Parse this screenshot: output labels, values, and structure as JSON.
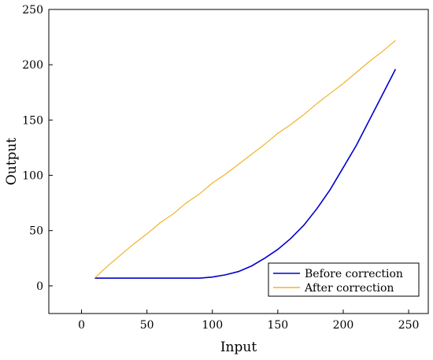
{
  "chart_data": {
    "type": "line",
    "title": "",
    "xlabel": "Input",
    "ylabel": "Output",
    "xlim": [
      -25,
      265
    ],
    "ylim": [
      -25,
      250
    ],
    "xticks": [
      0,
      50,
      100,
      150,
      200,
      250
    ],
    "yticks": [
      0,
      50,
      100,
      150,
      200,
      250
    ],
    "xtick_labels": [
      "0",
      "50",
      "100",
      "150",
      "200",
      "250"
    ],
    "ytick_labels": [
      "0",
      "50",
      "100",
      "150",
      "200",
      "250"
    ],
    "grid": false,
    "legend_position": "bottom-right",
    "series": [
      {
        "name": "Before correction",
        "color": "#0000cc",
        "x": [
          10,
          20,
          30,
          40,
          50,
          60,
          70,
          80,
          90,
          100,
          110,
          120,
          130,
          140,
          150,
          160,
          170,
          180,
          190,
          200,
          210,
          220,
          230,
          240
        ],
        "y": [
          7,
          7,
          7,
          7,
          7,
          7,
          7,
          7,
          7,
          8,
          10,
          13,
          18,
          25,
          33,
          43,
          55,
          70,
          87,
          107,
          127,
          150,
          173,
          196
        ]
      },
      {
        "name": "After correction",
        "color": "#f0b429",
        "x": [
          10,
          20,
          30,
          40,
          50,
          60,
          70,
          80,
          90,
          100,
          110,
          120,
          130,
          140,
          150,
          160,
          170,
          180,
          190,
          200,
          210,
          220,
          230,
          240
        ],
        "y": [
          7,
          18,
          28,
          38,
          47,
          57,
          65,
          75,
          83,
          93,
          101,
          110,
          119,
          128,
          138,
          146,
          155,
          165,
          174,
          183,
          193,
          203,
          212,
          222
        ]
      }
    ]
  }
}
